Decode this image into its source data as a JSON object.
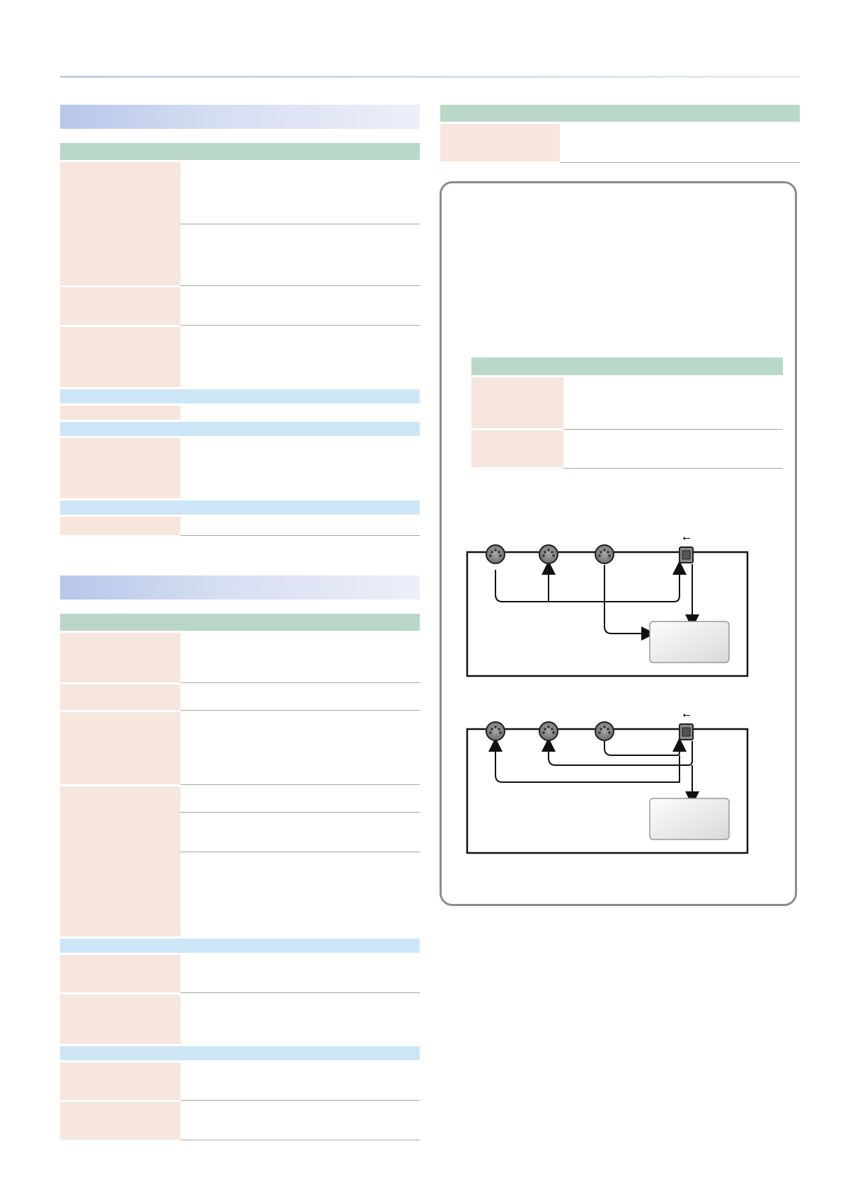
{
  "document": {
    "left_column": {
      "section_1": {
        "title": ""
      },
      "section_2": {
        "title": ""
      }
    },
    "right_column": {
      "top_table": {
        "header": ""
      },
      "note_box": {
        "inner_table": {
          "header": ""
        }
      }
    },
    "diagrams": [
      {
        "usb_symbol": "⭠",
        "processor_label": ""
      },
      {
        "usb_symbol": "⭠",
        "processor_label": ""
      }
    ]
  },
  "colors": {
    "table_header": "#b9d8c8",
    "sub_header": "#cde6f7",
    "label_cell": "#f6e6dd",
    "section_band": "#b7c7ea"
  }
}
